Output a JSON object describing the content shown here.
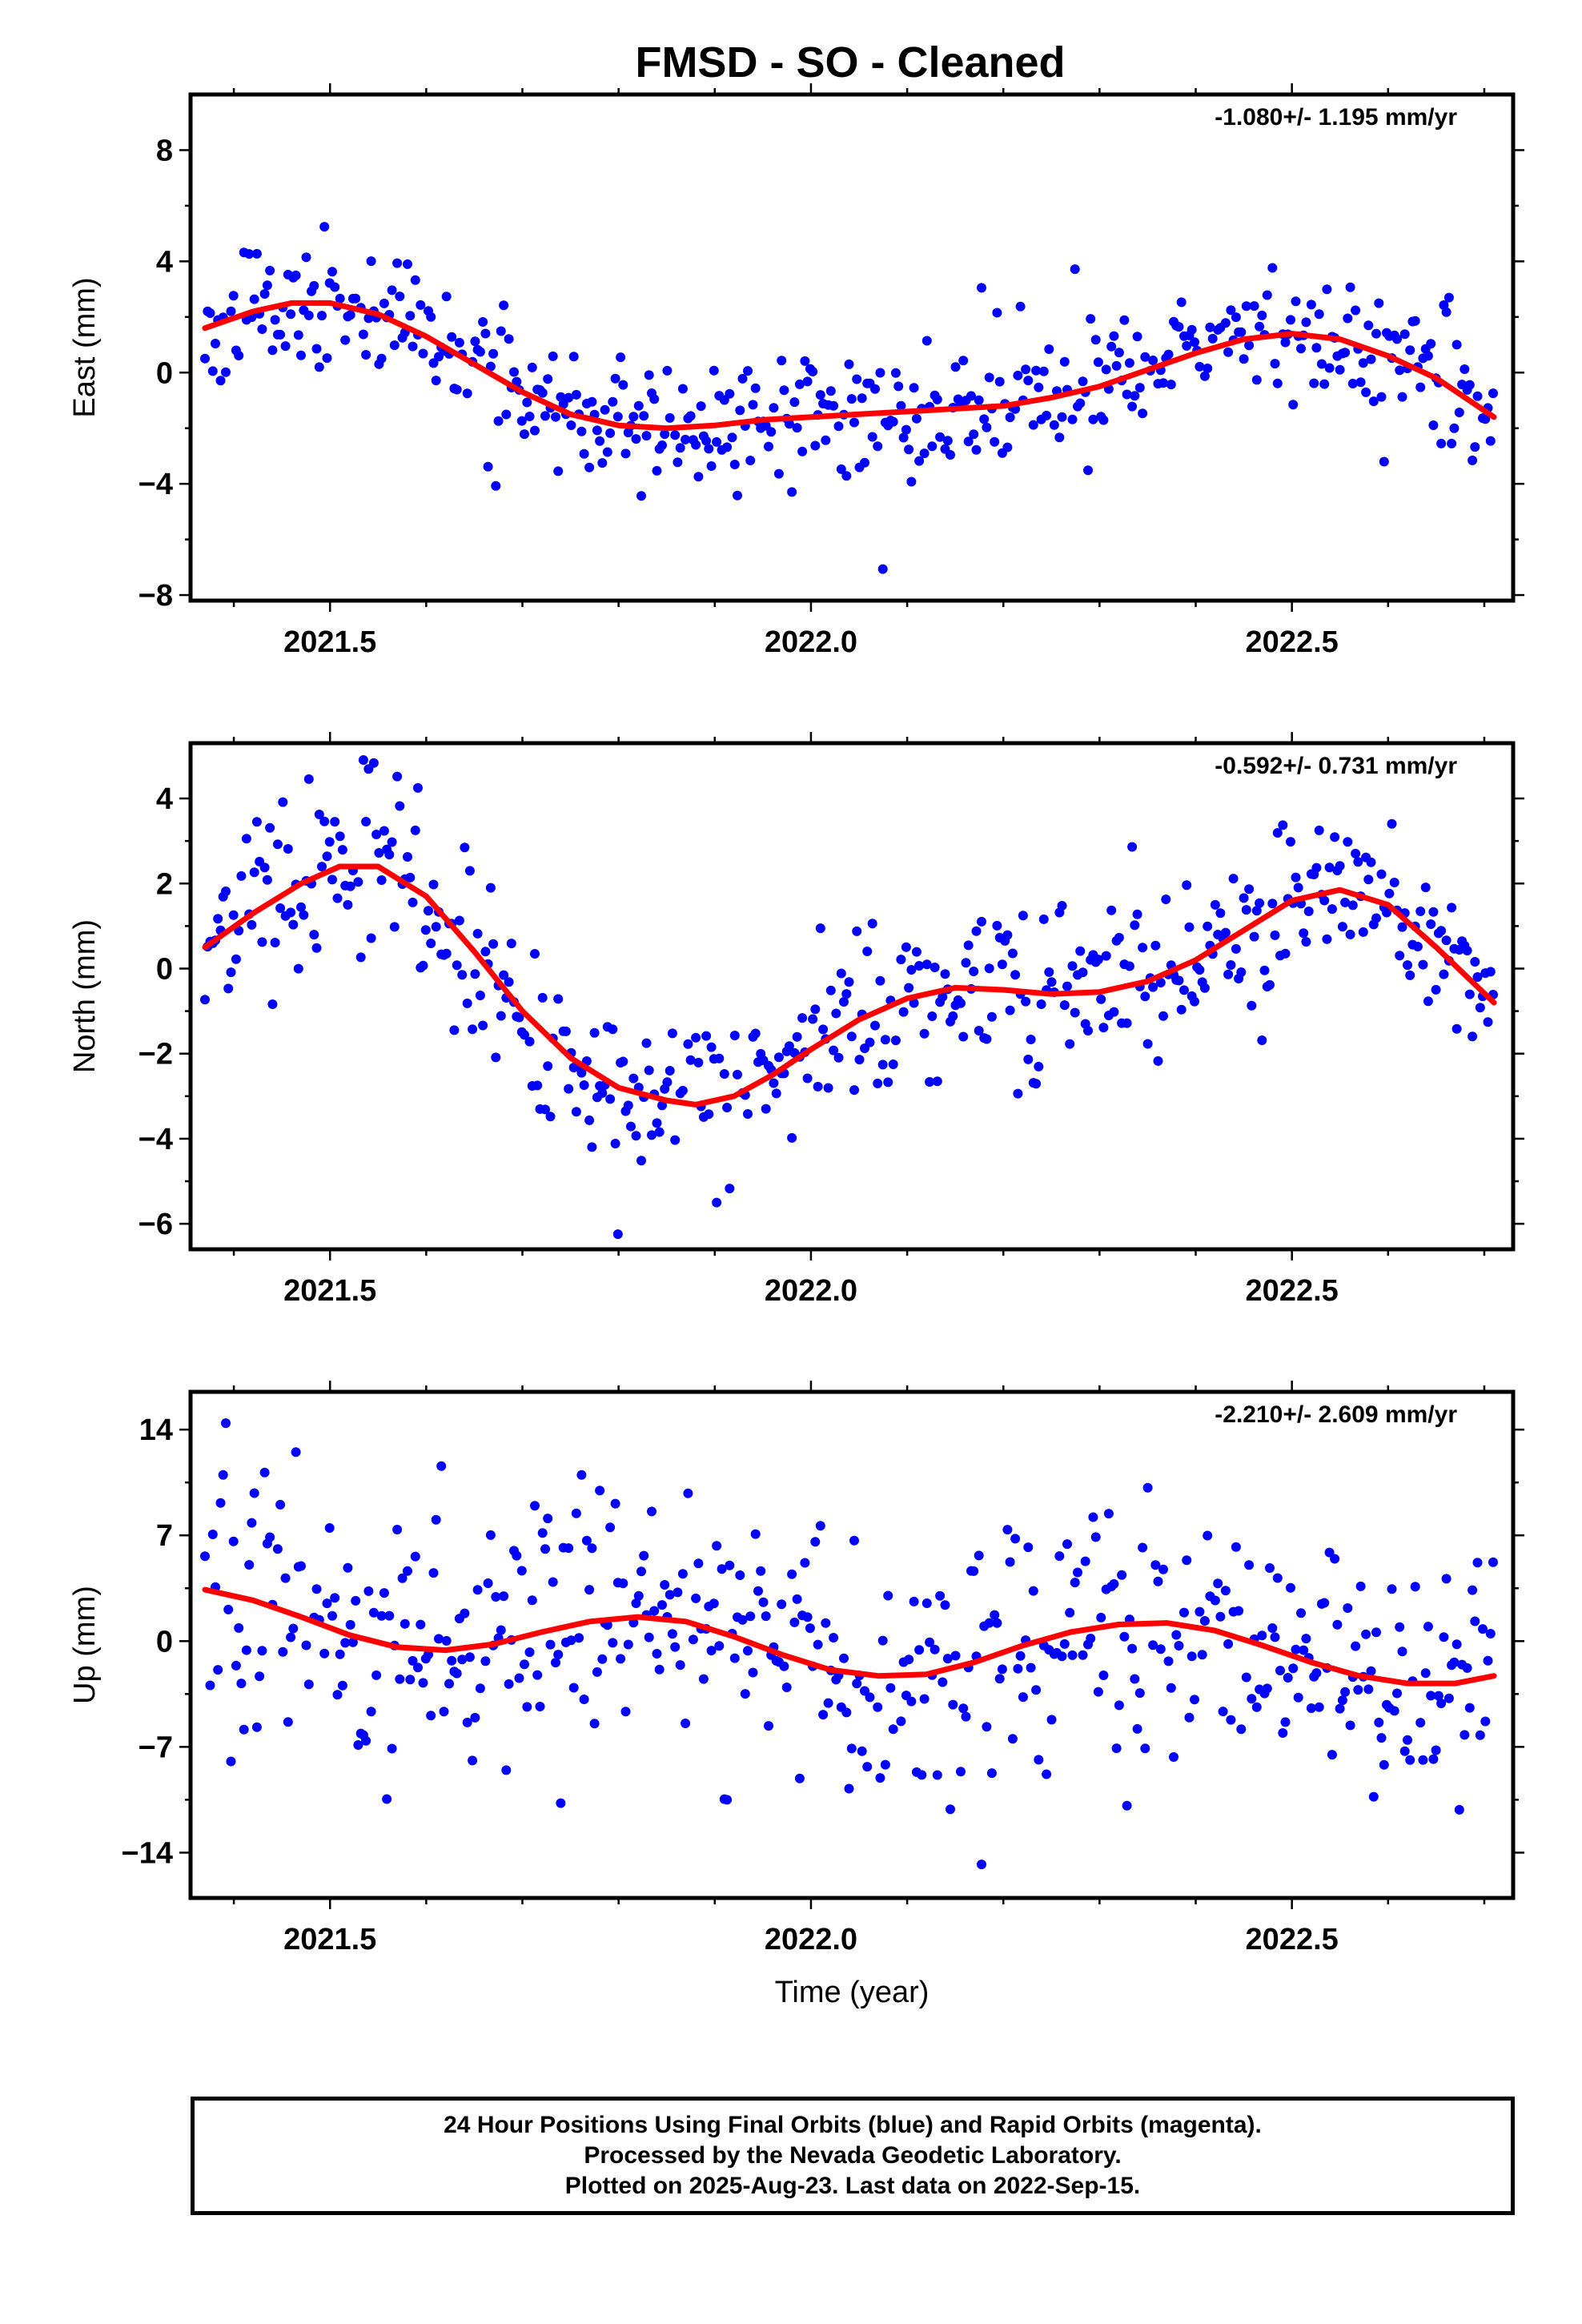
{
  "title": "FMSD  - SO - Cleaned",
  "footer": {
    "lines": [
      "24 Hour Positions Using Final Orbits (blue) and Rapid Orbits (magenta).",
      "Processed by the Nevada Geodetic Laboratory.",
      "Plotted on 2025-Aug-23. Last data on 2022-Sep-15."
    ]
  },
  "colors": {
    "points": "#0000ff",
    "fit": "#ff0000",
    "frame": "#000000"
  },
  "chart_data": [
    {
      "type": "scatter",
      "title": "FMSD  - SO - Cleaned",
      "ylabel": "East (mm)",
      "xlabel": "",
      "rate_label": "-1.080+/- 1.195 mm/yr",
      "xlim": [
        2021.355,
        2022.73
      ],
      "ylim": [
        -8.2,
        10
      ],
      "yticks": [
        -8,
        -4,
        0,
        4,
        8
      ],
      "ytick_labels": [
        "−8",
        "−4",
        "0",
        "4",
        "8"
      ],
      "xticks": [
        2021.5,
        2022.0,
        2022.5
      ],
      "xtick_labels": [
        "2021.5",
        "2022.0",
        "2022.5"
      ],
      "grid": false,
      "series": [
        {
          "name": "",
          "kind": "points",
          "model": {
            "x_start": 2021.37,
            "x_end": 2022.71,
            "step": 0.0027,
            "noise": 1.15,
            "seed": 11,
            "outliers": 7
          }
        },
        {
          "name": "",
          "kind": "fit",
          "x": [
            2021.37,
            2021.42,
            2021.46,
            2021.5,
            2021.55,
            2021.6,
            2021.65,
            2021.7,
            2021.75,
            2021.8,
            2021.85,
            2021.9,
            2021.95,
            2022.0,
            2022.05,
            2022.1,
            2022.15,
            2022.2,
            2022.25,
            2022.3,
            2022.35,
            2022.4,
            2022.45,
            2022.5,
            2022.55,
            2022.6,
            2022.65,
            2022.71
          ],
          "y": [
            1.6,
            2.2,
            2.5,
            2.5,
            2.1,
            1.3,
            0.3,
            -0.7,
            -1.5,
            -1.9,
            -2.0,
            -1.9,
            -1.7,
            -1.6,
            -1.5,
            -1.4,
            -1.3,
            -1.2,
            -0.9,
            -0.5,
            0.1,
            0.7,
            1.2,
            1.4,
            1.2,
            0.6,
            -0.2,
            -1.6
          ]
        }
      ]
    },
    {
      "type": "scatter",
      "title": "",
      "ylabel": "North (mm)",
      "xlabel": "",
      "rate_label": "-0.592+/- 0.731 mm/yr",
      "xlim": [
        2021.355,
        2022.73
      ],
      "ylim": [
        -6.6,
        5.3
      ],
      "yticks": [
        -6,
        -4,
        -2,
        0,
        2,
        4
      ],
      "ytick_labels": [
        "−6",
        "−4",
        "−2",
        "0",
        "2",
        "4"
      ],
      "xticks": [
        2021.5,
        2022.0,
        2022.5
      ],
      "xtick_labels": [
        "2021.5",
        "2022.0",
        "2022.5"
      ],
      "grid": false,
      "series": [
        {
          "name": "",
          "kind": "points",
          "model": {
            "x_start": 2021.37,
            "x_end": 2022.71,
            "step": 0.0027,
            "noise": 0.95,
            "seed": 23,
            "outliers": 6
          }
        },
        {
          "name": "",
          "kind": "fit",
          "x": [
            2021.37,
            2021.42,
            2021.47,
            2021.51,
            2021.55,
            2021.6,
            2021.65,
            2021.7,
            2021.75,
            2021.8,
            2021.85,
            2021.88,
            2021.92,
            2021.96,
            2022.0,
            2022.05,
            2022.1,
            2022.15,
            2022.2,
            2022.25,
            2022.3,
            2022.35,
            2022.4,
            2022.45,
            2022.5,
            2022.55,
            2022.6,
            2022.65,
            2022.71
          ],
          "y": [
            0.5,
            1.3,
            2.0,
            2.4,
            2.4,
            1.7,
            0.4,
            -1.0,
            -2.1,
            -2.8,
            -3.1,
            -3.2,
            -3.0,
            -2.5,
            -1.9,
            -1.2,
            -0.7,
            -0.45,
            -0.5,
            -0.6,
            -0.55,
            -0.3,
            0.2,
            0.9,
            1.6,
            1.85,
            1.5,
            0.5,
            -0.8
          ]
        }
      ]
    },
    {
      "type": "scatter",
      "title": "",
      "ylabel": "Up (mm)",
      "xlabel": "Time (year)",
      "rate_label": "-2.210+/- 2.609 mm/yr",
      "xlim": [
        2021.355,
        2022.73
      ],
      "ylim": [
        -17,
        16.5
      ],
      "yticks": [
        -14,
        -7,
        0,
        7,
        14
      ],
      "ytick_labels": [
        "−14",
        "−7",
        "0",
        "7",
        "14"
      ],
      "xticks": [
        2021.5,
        2022.0,
        2022.5
      ],
      "xtick_labels": [
        "2021.5",
        "2022.0",
        "2022.5"
      ],
      "grid": false,
      "series": [
        {
          "name": "",
          "kind": "points",
          "model": {
            "x_start": 2021.37,
            "x_end": 2022.71,
            "step": 0.0027,
            "noise": 4.1,
            "seed": 37,
            "outliers": 8
          }
        },
        {
          "name": "",
          "kind": "fit",
          "x": [
            2021.37,
            2021.42,
            2021.47,
            2021.52,
            2021.57,
            2021.62,
            2021.67,
            2021.72,
            2021.77,
            2021.82,
            2021.87,
            2021.92,
            2021.97,
            2022.02,
            2022.07,
            2022.12,
            2022.17,
            2022.22,
            2022.27,
            2022.32,
            2022.37,
            2022.42,
            2022.47,
            2022.52,
            2022.57,
            2022.62,
            2022.67,
            2022.71
          ],
          "y": [
            3.4,
            2.7,
            1.6,
            0.4,
            -0.4,
            -0.6,
            -0.2,
            0.6,
            1.3,
            1.6,
            1.3,
            0.3,
            -0.9,
            -1.9,
            -2.3,
            -2.2,
            -1.4,
            -0.3,
            0.6,
            1.1,
            1.2,
            0.7,
            -0.3,
            -1.4,
            -2.3,
            -2.8,
            -2.8,
            -2.3
          ]
        }
      ]
    }
  ]
}
